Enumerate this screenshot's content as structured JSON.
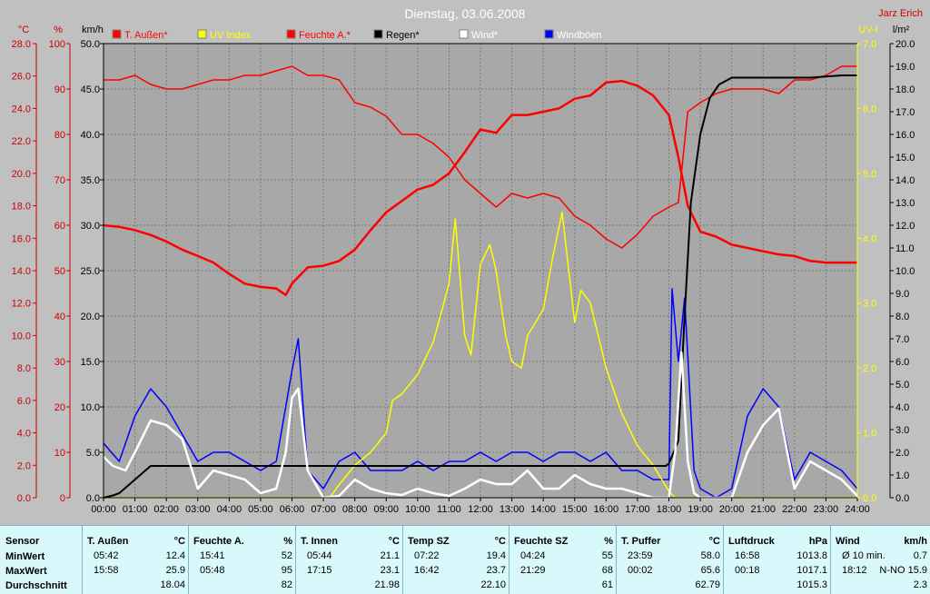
{
  "chart_data": {
    "type": "line",
    "title": "Dienstag, 03.06.2008",
    "author": "Jarz Erich",
    "x_ticks": [
      "00:00",
      "01:00",
      "02:00",
      "03:00",
      "04:00",
      "05:00",
      "06:00",
      "07:00",
      "08:00",
      "09:00",
      "10:00",
      "11:00",
      "12:00",
      "13:00",
      "14:00",
      "15:00",
      "16:00",
      "17:00",
      "18:00",
      "19:00",
      "20:00",
      "21:00",
      "22:00",
      "23:00",
      "24:00"
    ],
    "y_axes": {
      "temperature": {
        "unit": "°C",
        "range": [
          0,
          28
        ],
        "ticks": [
          "0.0",
          "2.0",
          "4.0",
          "6.0",
          "8.0",
          "10.0",
          "12.0",
          "14.0",
          "16.0",
          "18.0",
          "20.0",
          "22.0",
          "24.0",
          "26.0",
          "28.0"
        ]
      },
      "humidity": {
        "unit": "%",
        "range": [
          0,
          100
        ],
        "ticks": [
          "0",
          "10",
          "20",
          "30",
          "40",
          "50",
          "60",
          "70",
          "80",
          "90",
          "100"
        ]
      },
      "wind": {
        "unit": "km/h",
        "range": [
          0,
          50
        ],
        "ticks": [
          "0.0",
          "5.0",
          "10.0",
          "15.0",
          "20.0",
          "25.0",
          "30.0",
          "35.0",
          "40.0",
          "45.0",
          "50.0"
        ]
      },
      "uv": {
        "unit": "UV-I",
        "range": [
          0,
          7
        ],
        "ticks": [
          "0.0",
          "1.0",
          "2.0",
          "3.0",
          "4.0",
          "5.0",
          "6.0",
          "7.0"
        ]
      },
      "rain": {
        "unit": "l/m²",
        "range": [
          0,
          20
        ],
        "ticks": [
          "0.0",
          "1.0",
          "2.0",
          "3.0",
          "4.0",
          "5.0",
          "6.0",
          "7.0",
          "8.0",
          "9.0",
          "10.0",
          "11.0",
          "12.0",
          "13.0",
          "14.0",
          "15.0",
          "16.0",
          "17.0",
          "18.0",
          "19.0",
          "20.0"
        ]
      }
    },
    "legend": [
      {
        "name": "T. Außen*",
        "color": "#ff0000"
      },
      {
        "name": "UV Index",
        "color": "#ffff00"
      },
      {
        "name": "Feuchte A.*",
        "color": "#ff0000"
      },
      {
        "name": "Regen*",
        "color": "#000000"
      },
      {
        "name": "Wind*",
        "color": "#ffffff"
      },
      {
        "name": "Windböen",
        "color": "#0000ff"
      }
    ],
    "series": [
      {
        "name": "T. Außen*",
        "axis": "temperature",
        "color": "#ff0000",
        "x": [
          0,
          0.5,
          1,
          1.5,
          2,
          2.5,
          3,
          3.5,
          4,
          4.5,
          5,
          5.5,
          5.8,
          6,
          6.5,
          7,
          7.5,
          8,
          8.5,
          9,
          9.5,
          10,
          10.5,
          11,
          11.5,
          12,
          12.5,
          13,
          13.5,
          14,
          14.5,
          15,
          15.5,
          16,
          16.5,
          17,
          17.5,
          18,
          18.3,
          18.6,
          19,
          19.5,
          20,
          20.5,
          21,
          21.5,
          22,
          22.5,
          23,
          23.5,
          24
        ],
        "y": [
          16.8,
          16.7,
          16.5,
          16.2,
          15.8,
          15.3,
          14.9,
          14.5,
          13.8,
          13.2,
          13.0,
          12.9,
          12.5,
          13.2,
          14.2,
          14.3,
          14.6,
          15.3,
          16.5,
          17.6,
          18.3,
          19.0,
          19.3,
          20.0,
          21.3,
          22.7,
          22.5,
          23.6,
          23.6,
          23.8,
          24.0,
          24.6,
          24.8,
          25.6,
          25.7,
          25.4,
          24.8,
          23.6,
          21.0,
          18.0,
          16.4,
          16.1,
          15.6,
          15.4,
          15.2,
          15.0,
          14.9,
          14.6,
          14.5,
          14.5,
          14.5
        ]
      },
      {
        "name": "Feuchte A.*",
        "axis": "humidity",
        "color": "#ff0000",
        "x": [
          0,
          0.5,
          1,
          1.5,
          2,
          2.5,
          3,
          3.5,
          4,
          4.5,
          5,
          5.5,
          6,
          6.5,
          7,
          7.5,
          8,
          8.5,
          9,
          9.5,
          10,
          10.5,
          11,
          11.5,
          12,
          12.5,
          13,
          13.5,
          14,
          14.5,
          15,
          15.5,
          16,
          16.5,
          17,
          17.5,
          18,
          18.3,
          18.6,
          19,
          19.5,
          20,
          20.5,
          21,
          21.5,
          22,
          22.5,
          23,
          23.5,
          24
        ],
        "y": [
          92,
          92,
          93,
          91,
          90,
          90,
          91,
          92,
          92,
          93,
          93,
          94,
          95,
          93,
          93,
          92,
          87,
          86,
          84,
          80,
          80,
          78,
          75,
          70,
          67,
          64,
          67,
          66,
          67,
          66,
          62,
          60,
          57,
          55,
          58,
          62,
          64,
          65,
          85,
          87,
          89,
          90,
          90,
          90,
          89,
          92,
          92,
          93,
          95,
          95
        ]
      },
      {
        "name": "UV Index",
        "axis": "uv",
        "color": "#ffff00",
        "x": [
          0,
          7.2,
          7.5,
          8,
          8.5,
          9,
          9.2,
          9.5,
          10,
          10.5,
          11,
          11.2,
          11.5,
          11.7,
          12,
          12.3,
          12.5,
          12.8,
          13,
          13.3,
          13.5,
          14,
          14.3,
          14.6,
          15,
          15.2,
          15.5,
          16,
          16.5,
          17,
          17.5,
          18,
          18.2,
          24
        ],
        "y": [
          0,
          0,
          0.2,
          0.5,
          0.7,
          1.0,
          1.5,
          1.6,
          1.9,
          2.4,
          3.3,
          4.3,
          2.5,
          2.2,
          3.6,
          3.9,
          3.5,
          2.5,
          2.1,
          2.0,
          2.5,
          2.9,
          3.7,
          4.4,
          2.7,
          3.2,
          3.0,
          2.0,
          1.3,
          0.8,
          0.5,
          0.1,
          0,
          0
        ]
      },
      {
        "name": "Regen*",
        "axis": "rain",
        "color": "#000000",
        "x": [
          0,
          0.3,
          0.5,
          1,
          1.5,
          17.9,
          18,
          18.3,
          18.5,
          18.7,
          19,
          19.3,
          19.6,
          20,
          22.5,
          23.5,
          24
        ],
        "y": [
          0,
          0.1,
          0.2,
          0.8,
          1.4,
          1.4,
          1.5,
          2.5,
          8.0,
          13.0,
          16.0,
          17.6,
          18.2,
          18.5,
          18.5,
          18.6,
          18.6
        ]
      },
      {
        "name": "Wind*",
        "axis": "wind",
        "color": "#ffffff",
        "x": [
          0,
          0.3,
          0.7,
          1,
          1.5,
          2,
          2.5,
          3,
          3.5,
          4,
          4.5,
          5,
          5.5,
          5.8,
          6,
          6.2,
          6.5,
          7,
          7.5,
          8,
          8.5,
          9,
          9.5,
          10,
          10.5,
          11,
          11.5,
          12,
          12.5,
          13,
          13.5,
          14,
          14.5,
          15,
          15.5,
          16,
          16.5,
          17,
          17.5,
          18,
          18.2,
          18.4,
          18.6,
          18.8,
          19,
          19.5,
          20,
          20.5,
          21,
          21.5,
          22,
          22.5,
          23,
          23.5,
          24
        ],
        "y": [
          4.5,
          3.5,
          3.0,
          5.0,
          8.5,
          8.0,
          6.5,
          1.0,
          3.0,
          2.5,
          2.0,
          0.5,
          1.0,
          5.0,
          11.0,
          12.0,
          3.0,
          0,
          0.2,
          2.0,
          1.0,
          0.5,
          0.3,
          1.0,
          0.5,
          0.2,
          1.0,
          2.0,
          1.5,
          1.5,
          3.0,
          1.0,
          1.0,
          2.5,
          1.5,
          1.0,
          1.0,
          0.5,
          0,
          0,
          5.0,
          16.0,
          4.0,
          0.5,
          0,
          0,
          0,
          5.0,
          8.0,
          9.8,
          1.0,
          4.0,
          3.0,
          2.0,
          0.2
        ]
      },
      {
        "name": "Windböen",
        "axis": "wind",
        "color": "#0000ff",
        "x": [
          0,
          0.5,
          1,
          1.5,
          2,
          2.5,
          3,
          3.5,
          4,
          4.5,
          5,
          5.5,
          6,
          6.2,
          6.5,
          7,
          7.5,
          8,
          8.5,
          9,
          9.5,
          10,
          10.5,
          11,
          11.5,
          12,
          12.5,
          13,
          13.5,
          14,
          14.5,
          15,
          15.5,
          16,
          16.5,
          17,
          17.5,
          18,
          18.1,
          18.3,
          18.5,
          18.8,
          19,
          19.5,
          20,
          20.5,
          21,
          21.5,
          22,
          22.5,
          23,
          23.5,
          24
        ],
        "y": [
          6,
          4,
          9,
          12,
          10,
          7,
          4,
          5,
          5,
          4,
          3,
          4,
          14,
          17.5,
          3,
          1,
          4,
          5,
          3,
          3,
          3,
          4,
          3,
          4,
          4,
          5,
          4,
          5,
          5,
          4,
          5,
          5,
          4,
          5,
          3,
          3,
          2,
          2,
          23,
          15,
          22,
          3,
          1,
          0,
          1,
          9,
          12,
          10,
          2,
          5,
          4,
          3,
          1
        ]
      }
    ]
  },
  "stats": {
    "sensor_label": "Sensor",
    "row_labels": [
      "MinWert",
      "MaxWert",
      "Durchschnitt"
    ],
    "columns": [
      {
        "name": "T. Außen",
        "unit": "°C",
        "min_time": "05:42",
        "min": "12.4",
        "max_time": "15:58",
        "max": "25.9",
        "avg": "18.04"
      },
      {
        "name": "Feuchte A.",
        "unit": "%",
        "min_time": "15:41",
        "min": "52",
        "max_time": "05:48",
        "max": "95",
        "avg": "82"
      },
      {
        "name": "T. Innen",
        "unit": "°C",
        "min_time": "05:44",
        "min": "21.1",
        "max_time": "17:15",
        "max": "23.1",
        "avg": "21.98"
      },
      {
        "name": "Temp SZ",
        "unit": "°C",
        "min_time": "07:22",
        "min": "19.4",
        "max_time": "16:42",
        "max": "23.7",
        "avg": "22.10"
      },
      {
        "name": "Feuchte SZ",
        "unit": "%",
        "min_time": "04:24",
        "min": "55",
        "max_time": "21:29",
        "max": "68",
        "avg": "61"
      },
      {
        "name": "T. Puffer",
        "unit": "°C",
        "min_time": "23:59",
        "min": "58.0",
        "max_time": "00:02",
        "max": "65.6",
        "avg": "62.79"
      },
      {
        "name": "Luftdruck",
        "unit": "hPa",
        "min_time": "16:58",
        "min": "1013.8",
        "max_time": "00:18",
        "max": "1017.1",
        "avg": "1015.3"
      },
      {
        "name": "Wind",
        "unit": "km/h",
        "min_time": "Ø 10 min.",
        "min": "0.7",
        "max_time": "18:12",
        "max": "N-NO 15.9",
        "avg": "2.3"
      }
    ]
  },
  "colors": {
    "temp": "#ff0000",
    "uv": "#ffff00",
    "rain": "#000000",
    "wind": "#ffffff",
    "gusts": "#0000ff",
    "axis_red": "#cc0000",
    "title": "#ffffff"
  }
}
